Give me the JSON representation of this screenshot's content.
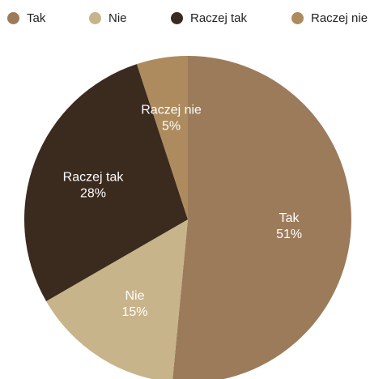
{
  "chart_data": {
    "type": "pie",
    "legend_placement": "top",
    "slices": [
      {
        "label": "Tak",
        "value": 51,
        "value_label": "51%",
        "color": "#9c7b5b"
      },
      {
        "label": "Nie",
        "value": 15,
        "value_label": "15%",
        "color": "#c8b48a"
      },
      {
        "label": "Raczej tak",
        "value": 28,
        "value_label": "28%",
        "color": "#3b2a1e"
      },
      {
        "label": "Raczej nie",
        "value": 5,
        "value_label": "5%",
        "color": "#ad8b5e"
      }
    ]
  }
}
